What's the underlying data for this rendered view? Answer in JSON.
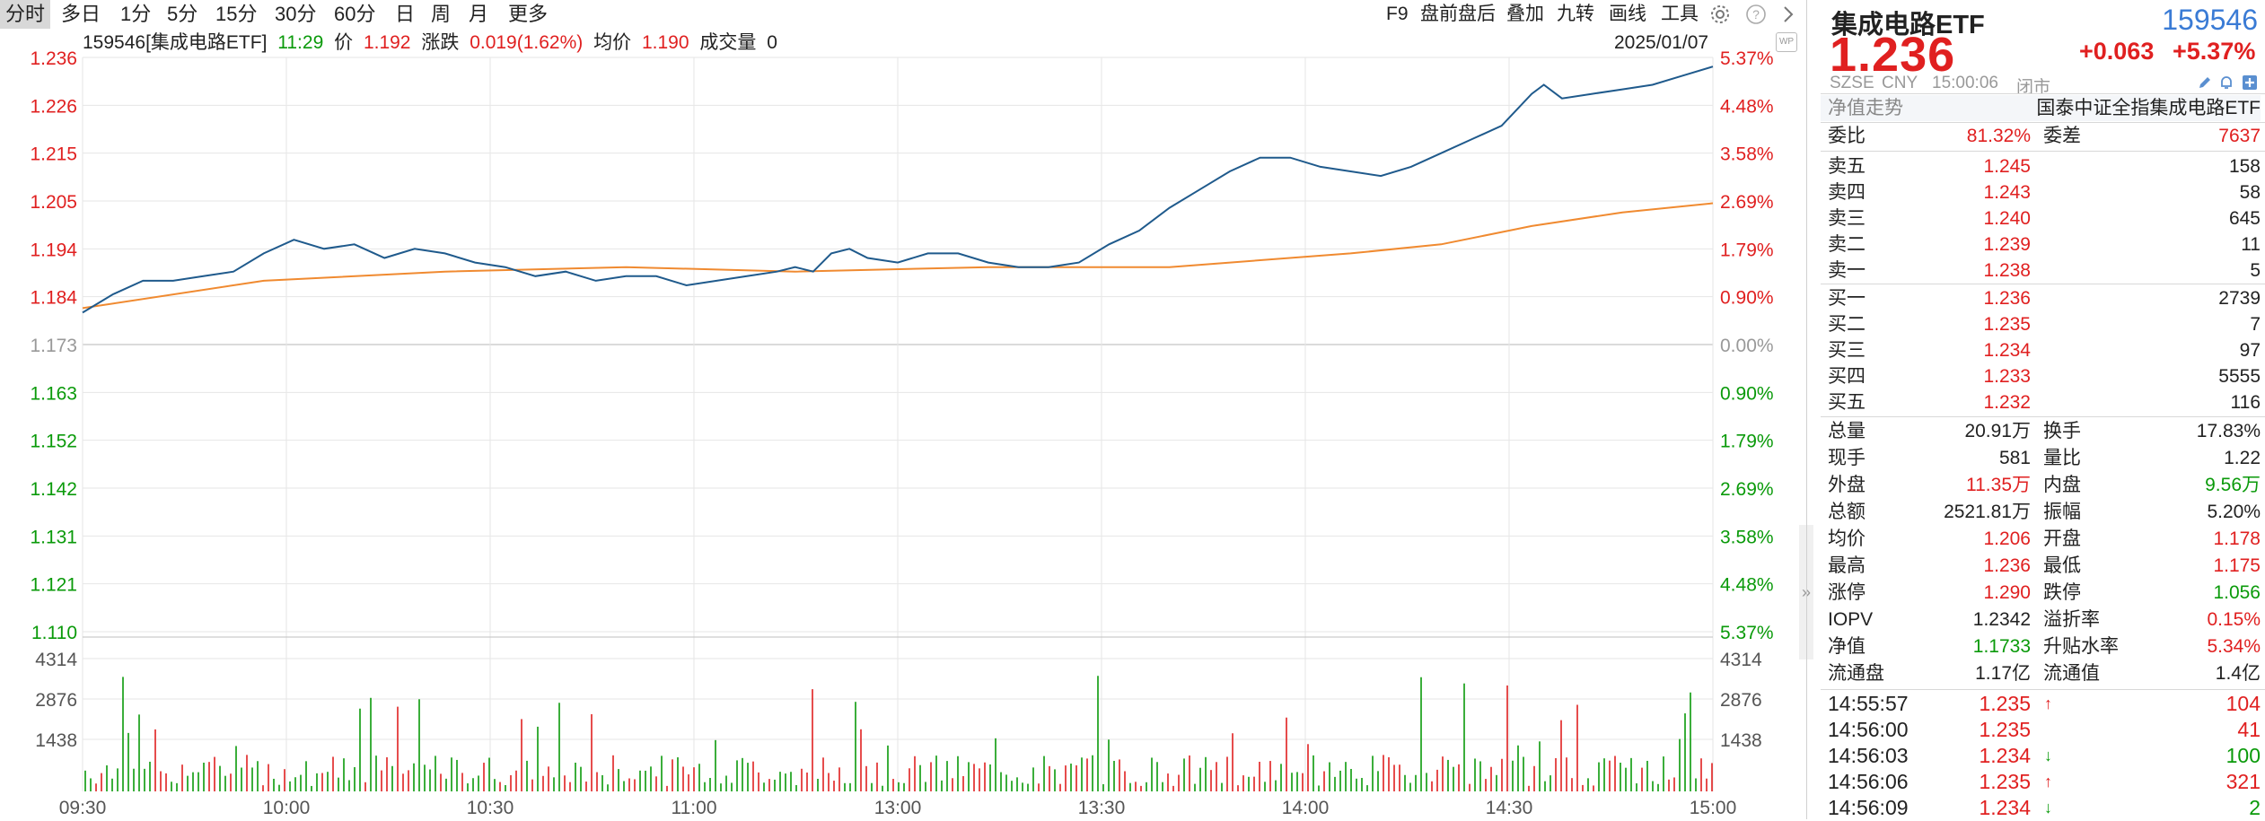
{
  "toolbar": {
    "periods": [
      "分时",
      "多日",
      "1分",
      "5分",
      "15分",
      "30分",
      "60分",
      "日",
      "周",
      "月",
      "更多"
    ],
    "active_period": "分时",
    "right_items": [
      "F9",
      "盘前盘后",
      "叠加",
      "九转",
      "画线",
      "工具"
    ]
  },
  "info_bar": {
    "code_name": "159546[集成电路ETF]",
    "time": "11:29",
    "price_label": "价",
    "price": "1.192",
    "change_label": "涨跌",
    "change": "0.019(1.62%)",
    "avg_label": "均价",
    "avg": "1.190",
    "volume_label": "成交量",
    "volume": "0"
  },
  "chart_date": "2025/01/07",
  "colors": {
    "up": "#e02020",
    "down": "#0a9a0a",
    "price_line": "#1f5a8c",
    "avg_line": "#f08a30",
    "grid": "#e6e6e6"
  },
  "chart_data": {
    "type": "line",
    "prev_close": 1.173,
    "price_axis_ticks": [
      "1.236",
      "1.226",
      "1.215",
      "1.205",
      "1.194",
      "1.184",
      "1.173",
      "1.163",
      "1.152",
      "1.142",
      "1.131",
      "1.121",
      "1.110"
    ],
    "pct_axis_ticks": [
      "5.37%",
      "4.48%",
      "3.58%",
      "2.69%",
      "1.79%",
      "0.90%",
      "0.00%",
      "0.90%",
      "1.79%",
      "2.69%",
      "3.58%",
      "4.48%",
      "5.37%"
    ],
    "volume_axis_ticks": [
      "4314",
      "2876",
      "1438"
    ],
    "time_ticks": [
      "09:30",
      "10:00",
      "10:30",
      "11:00",
      "13:00",
      "13:30",
      "14:00",
      "14:30",
      "15:00"
    ],
    "ylim": [
      1.11,
      1.236
    ],
    "series": [
      {
        "points": [
          [
            0,
            1.18
          ],
          [
            5,
            1.184
          ],
          [
            10,
            1.187
          ],
          [
            15,
            1.187
          ],
          [
            20,
            1.188
          ],
          [
            25,
            1.189
          ],
          [
            30,
            1.193
          ],
          [
            35,
            1.196
          ],
          [
            40,
            1.194
          ],
          [
            45,
            1.195
          ],
          [
            50,
            1.192
          ],
          [
            55,
            1.194
          ],
          [
            60,
            1.193
          ],
          [
            65,
            1.191
          ],
          [
            70,
            1.19
          ],
          [
            75,
            1.188
          ],
          [
            80,
            1.189
          ],
          [
            85,
            1.187
          ],
          [
            90,
            1.188
          ],
          [
            95,
            1.188
          ],
          [
            100,
            1.186
          ],
          [
            105,
            1.187
          ],
          [
            110,
            1.188
          ],
          [
            115,
            1.189
          ],
          [
            118,
            1.19
          ],
          [
            121,
            1.189
          ],
          [
            124,
            1.193
          ],
          [
            127,
            1.194
          ],
          [
            130,
            1.192
          ],
          [
            135,
            1.191
          ],
          [
            140,
            1.193
          ],
          [
            145,
            1.193
          ],
          [
            150,
            1.191
          ],
          [
            155,
            1.19
          ],
          [
            160,
            1.19
          ],
          [
            165,
            1.191
          ],
          [
            170,
            1.195
          ],
          [
            175,
            1.198
          ],
          [
            180,
            1.203
          ],
          [
            185,
            1.207
          ],
          [
            190,
            1.211
          ],
          [
            195,
            1.214
          ],
          [
            200,
            1.214
          ],
          [
            205,
            1.212
          ],
          [
            210,
            1.211
          ],
          [
            215,
            1.21
          ],
          [
            220,
            1.212
          ],
          [
            225,
            1.215
          ],
          [
            230,
            1.218
          ],
          [
            235,
            1.221
          ],
          [
            240,
            1.228
          ],
          [
            242,
            1.23
          ],
          [
            245,
            1.227
          ],
          [
            250,
            1.228
          ],
          [
            255,
            1.229
          ],
          [
            260,
            1.23
          ],
          [
            265,
            1.232
          ],
          [
            270,
            1.234
          ],
          [
            235,
            1.221
          ],
          [
            240,
            1.228
          ]
        ]
      },
      {
        "points": [
          [
            0,
            1.181
          ],
          [
            30,
            1.187
          ],
          [
            60,
            1.189
          ],
          [
            90,
            1.19
          ],
          [
            118,
            1.189
          ],
          [
            150,
            1.19
          ],
          [
            180,
            1.19
          ],
          [
            210,
            1.193
          ],
          [
            225,
            1.195
          ],
          [
            240,
            1.199
          ],
          [
            255,
            1.202
          ],
          [
            270,
            1.204
          ]
        ]
      }
    ]
  },
  "panel": {
    "name": "集成电路ETF",
    "code": "159546",
    "price": "1.236",
    "change": "+0.063",
    "change_pct": "+5.37%",
    "market": "SZSE",
    "currency": "CNY",
    "time": "15:00:06",
    "status": "闭市",
    "nav_trend_label": "净值走势",
    "index_name": "国泰中证全指集成电路ETF",
    "weibi_label": "委比",
    "weibi": "81.32%",
    "weicha_label": "委差",
    "weicha": "7637",
    "asks": [
      {
        "label": "卖五",
        "price": "1.245",
        "vol": "158"
      },
      {
        "label": "卖四",
        "price": "1.243",
        "vol": "58"
      },
      {
        "label": "卖三",
        "price": "1.240",
        "vol": "645"
      },
      {
        "label": "卖二",
        "price": "1.239",
        "vol": "11"
      },
      {
        "label": "卖一",
        "price": "1.238",
        "vol": "5"
      }
    ],
    "bids": [
      {
        "label": "买一",
        "price": "1.236",
        "vol": "2739"
      },
      {
        "label": "买二",
        "price": "1.235",
        "vol": "7"
      },
      {
        "label": "买三",
        "price": "1.234",
        "vol": "97"
      },
      {
        "label": "买四",
        "price": "1.233",
        "vol": "5555"
      },
      {
        "label": "买五",
        "price": "1.232",
        "vol": "116"
      }
    ],
    "stats": [
      {
        "l1": "总量",
        "v1": "20.91万",
        "c1": "dark",
        "l2": "换手",
        "v2": "17.83%",
        "c2": "dark"
      },
      {
        "l1": "现手",
        "v1": "581",
        "c1": "dark",
        "l2": "量比",
        "v2": "1.22",
        "c2": "dark"
      },
      {
        "l1": "外盘",
        "v1": "11.35万",
        "c1": "red",
        "l2": "内盘",
        "v2": "9.56万",
        "c2": "green"
      },
      {
        "l1": "总额",
        "v1": "2521.81万",
        "c1": "dark",
        "l2": "振幅",
        "v2": "5.20%",
        "c2": "dark"
      },
      {
        "l1": "均价",
        "v1": "1.206",
        "c1": "red",
        "l2": "开盘",
        "v2": "1.178",
        "c2": "red"
      },
      {
        "l1": "最高",
        "v1": "1.236",
        "c1": "red",
        "l2": "最低",
        "v2": "1.175",
        "c2": "red"
      },
      {
        "l1": "涨停",
        "v1": "1.290",
        "c1": "red",
        "l2": "跌停",
        "v2": "1.056",
        "c2": "green"
      },
      {
        "l1": "IOPV",
        "v1": "1.2342",
        "c1": "dark",
        "l2": "溢折率",
        "v2": "0.15%",
        "c2": "red"
      },
      {
        "l1": "净值",
        "v1": "1.1733",
        "c1": "green",
        "l2": "升贴水率",
        "v2": "5.34%",
        "c2": "red"
      },
      {
        "l1": "流通盘",
        "v1": "1.17亿",
        "c1": "dark",
        "l2": "流通值",
        "v2": "1.4亿",
        "c2": "dark"
      }
    ],
    "ticks": [
      {
        "time": "14:55:57",
        "price": "1.235",
        "dir": "up",
        "vol": "104"
      },
      {
        "time": "14:56:00",
        "price": "1.235",
        "dir": "",
        "vol": "41"
      },
      {
        "time": "14:56:03",
        "price": "1.234",
        "dir": "down",
        "vol": "100"
      },
      {
        "time": "14:56:06",
        "price": "1.235",
        "dir": "up",
        "vol": "321"
      },
      {
        "time": "14:56:09",
        "price": "1.234",
        "dir": "down",
        "vol": "2"
      }
    ]
  }
}
